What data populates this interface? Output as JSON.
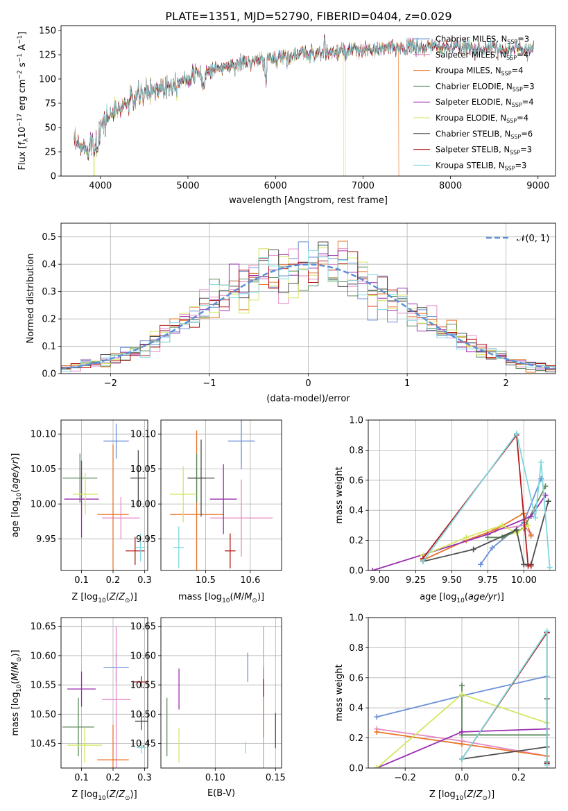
{
  "figure": {
    "title": "PLATE=1351, MJD=52790, FIBERID=0404, z=0.029"
  },
  "colors": {
    "Chabrier MILES": "#6a8fd8",
    "Salpeter MILES": "#e58ac6",
    "Kroupa MILES": "#e8772a",
    "Chabrier ELODIE": "#5c8a5c",
    "Salpeter ELODIE": "#9b2fb0",
    "Kroupa ELODIE": "#d4e660",
    "Chabrier STELIB": "#4d4d4d",
    "Salpeter STELIB": "#b21a1a",
    "Kroupa STELIB": "#7fd8e0",
    "normal_curve": "#5b8fd6",
    "grid": "#b0b0b0"
  },
  "chart_data": [
    {
      "id": "spectrum",
      "type": "line",
      "xlabel": "wavelength [Angstrom, rest frame]",
      "ylabel": "Flux [fλ10⁻¹⁷ erg cm⁻² s⁻¹ A⁻¹]",
      "xlim": [
        3550,
        9200
      ],
      "ylim": [
        0,
        155
      ],
      "xticks": [
        4000,
        5000,
        6000,
        7000,
        8000,
        9000
      ],
      "yticks": [
        0,
        25,
        50,
        75,
        100,
        125,
        150
      ],
      "grid": false,
      "legend_position": "top-right",
      "series": [
        {
          "name": "Chabrier MILES, N",
          "sub": "SSP",
          "suffix": "=3"
        },
        {
          "name": "Salpeter MILES, N",
          "sub": "SSP",
          "suffix": "=4"
        },
        {
          "name": "Kroupa MILES, N",
          "sub": "SSP",
          "suffix": "=4"
        },
        {
          "name": "Chabrier ELODIE, N",
          "sub": "SSP",
          "suffix": "=3"
        },
        {
          "name": "Salpeter ELODIE, N",
          "sub": "SSP",
          "suffix": "=4"
        },
        {
          "name": "Kroupa ELODIE, N",
          "sub": "SSP",
          "suffix": "=4"
        },
        {
          "name": "Chabrier STELIB, N",
          "sub": "SSP",
          "suffix": "=6"
        },
        {
          "name": "Salpeter STELIB, N",
          "sub": "SSP",
          "suffix": "=3"
        },
        {
          "name": "Kroupa STELIB, N",
          "sub": "SSP",
          "suffix": "=3"
        }
      ],
      "continuum_points": [
        [
          3700,
          33
        ],
        [
          3800,
          28
        ],
        [
          3900,
          34
        ],
        [
          4000,
          50
        ],
        [
          4100,
          62
        ],
        [
          4300,
          75
        ],
        [
          4500,
          85
        ],
        [
          4800,
          95
        ],
        [
          5000,
          102
        ],
        [
          5300,
          110
        ],
        [
          5600,
          116
        ],
        [
          5900,
          120
        ],
        [
          6200,
          125
        ],
        [
          6500,
          127
        ],
        [
          6800,
          128
        ],
        [
          7100,
          130
        ],
        [
          7400,
          132
        ],
        [
          7800,
          133
        ],
        [
          8200,
          132
        ],
        [
          8600,
          131
        ],
        [
          8900,
          131
        ]
      ],
      "dropouts": [
        {
          "x": 3920,
          "to": 0,
          "series": "Kroupa ELODIE"
        },
        {
          "x": 6780,
          "to": 0,
          "series": "Kroupa ELODIE"
        },
        {
          "x": 7410,
          "to": 0,
          "series": "Kroupa MILES"
        }
      ]
    },
    {
      "id": "residual_histogram",
      "type": "line",
      "xlabel": "(data-model)/error",
      "ylabel": "Normed distribution",
      "xlim": [
        -2.5,
        2.5
      ],
      "ylim": [
        0,
        0.55
      ],
      "xticks": [
        -2,
        -1,
        0,
        1,
        2
      ],
      "yticks": [
        0.0,
        0.1,
        0.2,
        0.3,
        0.4,
        0.5
      ],
      "grid": true,
      "legend": [
        {
          "label": "N(0,1)",
          "style": "dashed"
        }
      ],
      "legend_position": "top-right",
      "bin_width": 0.1,
      "bin_start": -2.5
    },
    {
      "id": "age_vs_Z",
      "type": "scatter",
      "xlabel": "Z [log10(Z/Z⊙)]",
      "ylabel": "age [log10(age/yr)]",
      "xlim": [
        0.035,
        0.31
      ],
      "ylim": [
        9.905,
        10.12
      ],
      "xticks": [
        0.1,
        0.2,
        0.3
      ],
      "yticks": [
        9.95,
        10.0,
        10.05,
        10.1
      ],
      "grid": true,
      "points": [
        {
          "series": "Chabrier MILES",
          "x": 0.21,
          "y": 10.09,
          "xerr": 0.04,
          "yerr": 0.025
        },
        {
          "series": "Salpeter MILES",
          "x": 0.225,
          "y": 9.98,
          "xerr": 0.06,
          "yerr": 0.03
        },
        {
          "series": "Kroupa MILES",
          "x": 0.2,
          "y": 9.985,
          "xerr": 0.05,
          "yerr": 0.1
        },
        {
          "series": "Chabrier ELODIE",
          "x": 0.095,
          "y": 10.037,
          "xerr": 0.055,
          "yerr": 0.035
        },
        {
          "series": "Salpeter ELODIE",
          "x": 0.1,
          "y": 10.007,
          "xerr": 0.055,
          "yerr": 0.055
        },
        {
          "series": "Kroupa ELODIE",
          "x": 0.112,
          "y": 10.014,
          "xerr": 0.04,
          "yerr": 0.03
        },
        {
          "series": "Chabrier STELIB",
          "x": 0.28,
          "y": 10.037,
          "xerr": 0.025,
          "yerr": 0.04
        },
        {
          "series": "Salpeter STELIB",
          "x": 0.27,
          "y": 9.933,
          "xerr": 0.03,
          "yerr": 0.02
        },
        {
          "series": "Kroupa STELIB",
          "x": 0.287,
          "y": 9.938,
          "xerr": 0.015,
          "yerr": 0.02
        }
      ]
    },
    {
      "id": "age_vs_mass",
      "type": "scatter",
      "xlabel": "mass [log10(M/M⊙)]",
      "ylabel": "",
      "xlim": [
        10.4,
        10.67
      ],
      "ylim": [
        9.905,
        10.12
      ],
      "xticks": [
        10.5,
        10.6
      ],
      "yticks": [
        9.95,
        10.0,
        10.05,
        10.1
      ],
      "grid": true,
      "points": [
        {
          "series": "Chabrier MILES",
          "x": 10.58,
          "y": 10.09,
          "xerr": 0.03,
          "yerr": 0.04
        },
        {
          "series": "Salpeter MILES",
          "x": 10.58,
          "y": 9.98,
          "xerr": 0.07,
          "yerr": 0.055
        },
        {
          "series": "Kroupa MILES",
          "x": 10.48,
          "y": 9.985,
          "xerr": 0.06,
          "yerr": 0.12
        },
        {
          "series": "Chabrier ELODIE",
          "x": 10.48,
          "y": 10.037,
          "xerr": 0.02,
          "yerr": 0.035
        },
        {
          "series": "Salpeter ELODIE",
          "x": 10.54,
          "y": 10.007,
          "xerr": 0.03,
          "yerr": 0.05
        },
        {
          "series": "Kroupa ELODIE",
          "x": 10.45,
          "y": 10.014,
          "xerr": 0.03,
          "yerr": 0.04
        },
        {
          "series": "Chabrier STELIB",
          "x": 10.49,
          "y": 10.037,
          "xerr": 0.03,
          "yerr": 0.055
        },
        {
          "series": "Salpeter STELIB",
          "x": 10.555,
          "y": 9.933,
          "xerr": 0.012,
          "yerr": 0.025
        },
        {
          "series": "Kroupa STELIB",
          "x": 10.44,
          "y": 9.938,
          "xerr": 0.012,
          "yerr": 0.03
        }
      ]
    },
    {
      "id": "mass_weight_vs_age",
      "type": "line",
      "xlabel": "age [log10(age/yr)]",
      "ylabel": "mass weight",
      "xlim": [
        8.92,
        10.22
      ],
      "ylim": [
        0,
        1.0
      ],
      "xticks": [
        9.0,
        9.25,
        9.5,
        9.75,
        10.0
      ],
      "yticks": [
        0.0,
        0.2,
        0.4,
        0.6,
        0.8,
        1.0
      ],
      "grid": true,
      "lines": [
        {
          "series": "Chabrier MILES",
          "points": [
            [
              9.7,
              0.04
            ],
            [
              9.78,
              0.15
            ],
            [
              10.0,
              0.32
            ],
            [
              10.12,
              0.61
            ]
          ]
        },
        {
          "series": "Salpeter MILES",
          "points": [
            [
              9.3,
              0.07
            ],
            [
              9.6,
              0.2
            ],
            [
              9.8,
              0.27
            ],
            [
              10.0,
              0.3
            ],
            [
              10.05,
              0.24
            ]
          ]
        },
        {
          "series": "Kroupa MILES",
          "points": [
            [
              9.3,
              0.07
            ],
            [
              9.6,
              0.2
            ],
            [
              9.8,
              0.27
            ],
            [
              10.0,
              0.38
            ],
            [
              10.05,
              0.23
            ]
          ]
        },
        {
          "series": "Chabrier ELODIE",
          "points": [
            [
              9.75,
              0.22
            ],
            [
              9.85,
              0.22
            ],
            [
              10.0,
              0.28
            ],
            [
              10.15,
              0.56
            ]
          ]
        },
        {
          "series": "Salpeter ELODIE",
          "points": [
            [
              8.95,
              0.0
            ],
            [
              9.75,
              0.24
            ],
            [
              10.05,
              0.36
            ],
            [
              10.15,
              0.5
            ]
          ]
        },
        {
          "series": "Kroupa ELODIE",
          "points": [
            [
              9.3,
              0.1
            ],
            [
              9.6,
              0.22
            ],
            [
              9.85,
              0.3
            ],
            [
              9.95,
              0.25
            ],
            [
              10.03,
              0.3
            ]
          ]
        },
        {
          "series": "Chabrier STELIB",
          "points": [
            [
              9.3,
              0.06
            ],
            [
              9.65,
              0.14
            ],
            [
              9.95,
              0.27
            ],
            [
              10.0,
              0.04
            ],
            [
              10.05,
              0.04
            ],
            [
              10.17,
              0.46
            ]
          ]
        },
        {
          "series": "Salpeter STELIB",
          "points": [
            [
              9.3,
              0.08
            ],
            [
              9.95,
              0.9
            ],
            [
              10.03,
              0.03
            ],
            [
              10.05,
              0.03
            ]
          ]
        },
        {
          "series": "Kroupa STELIB",
          "points": [
            [
              9.3,
              0.06
            ],
            [
              9.95,
              0.91
            ],
            [
              10.08,
              0.35
            ],
            [
              10.12,
              0.72
            ],
            [
              10.18,
              0.02
            ]
          ]
        }
      ]
    },
    {
      "id": "mass_vs_Z",
      "type": "scatter",
      "xlabel": "Z [log10(Z/Z⊙)]",
      "ylabel": "mass [log10(M/M⊙)]",
      "xlim": [
        0.035,
        0.31
      ],
      "ylim": [
        10.408,
        10.665
      ],
      "xticks": [
        0.1,
        0.2,
        0.3
      ],
      "yticks": [
        10.45,
        10.5,
        10.55,
        10.6,
        10.65
      ],
      "grid": true,
      "points": [
        {
          "series": "Chabrier MILES",
          "x": 0.21,
          "y": 10.58,
          "xerr": 0.04,
          "yerr": 0.025
        },
        {
          "series": "Salpeter MILES",
          "x": 0.21,
          "y": 10.525,
          "xerr": 0.045,
          "yerr": 0.125
        },
        {
          "series": "Kroupa MILES",
          "x": 0.2,
          "y": 10.422,
          "xerr": 0.05,
          "yerr": 0.06
        },
        {
          "series": "Chabrier ELODIE",
          "x": 0.09,
          "y": 10.478,
          "xerr": 0.05,
          "yerr": 0.05
        },
        {
          "series": "Salpeter ELODIE",
          "x": 0.1,
          "y": 10.543,
          "xerr": 0.045,
          "yerr": 0.03
        },
        {
          "series": "Kroupa ELODIE",
          "x": 0.11,
          "y": 10.447,
          "xerr": 0.055,
          "yerr": 0.03
        },
        {
          "series": "Chabrier STELIB",
          "x": 0.29,
          "y": 10.488,
          "xerr": 0.02,
          "yerr": 0.015
        },
        {
          "series": "Salpeter STELIB",
          "x": 0.29,
          "y": 10.555,
          "xerr": 0.025,
          "yerr": 0.01
        },
        {
          "series": "Kroupa STELIB",
          "x": 0.29,
          "y": 10.443,
          "xerr": 0.015,
          "yerr": 0.01
        }
      ]
    },
    {
      "id": "mass_vs_ebv",
      "type": "scatter",
      "xlabel": "E(B-V)",
      "ylabel": "",
      "xlim": [
        0.055,
        0.155
      ],
      "ylim": [
        10.408,
        10.665
      ],
      "xticks": [
        0.1,
        0.15
      ],
      "yticks": [
        10.45,
        10.5,
        10.55,
        10.6,
        10.65
      ],
      "grid": true,
      "points": [
        {
          "series": "Chabrier MILES",
          "x": 0.127,
          "y": 10.58,
          "xerr": 0,
          "yerr": 0.025
        },
        {
          "series": "Salpeter MILES",
          "x": 0.14,
          "y": 10.525,
          "xerr": 0,
          "yerr": 0.125
        },
        {
          "series": "Kroupa MILES",
          "x": 0.14,
          "y": 10.52,
          "xerr": 0,
          "yerr": 0.06
        },
        {
          "series": "Chabrier ELODIE",
          "x": 0.06,
          "y": 10.478,
          "xerr": 0,
          "yerr": 0.05
        },
        {
          "series": "Salpeter ELODIE",
          "x": 0.07,
          "y": 10.543,
          "xerr": 0,
          "yerr": 0.035
        },
        {
          "series": "Kroupa ELODIE",
          "x": 0.07,
          "y": 10.447,
          "xerr": 0,
          "yerr": 0.03
        },
        {
          "series": "Chabrier STELIB",
          "x": 0.15,
          "y": 10.472,
          "xerr": 0,
          "yerr": 0.03
        },
        {
          "series": "Salpeter STELIB",
          "x": 0.14,
          "y": 10.545,
          "xerr": 0,
          "yerr": 0.015
        },
        {
          "series": "Kroupa STELIB",
          "x": 0.125,
          "y": 10.443,
          "xerr": 0,
          "yerr": 0.01
        }
      ]
    },
    {
      "id": "mass_weight_vs_Z",
      "type": "line",
      "xlabel": "Z [log10(Z/Z⊙)]",
      "ylabel": "mass weight",
      "xlim": [
        -0.33,
        0.33
      ],
      "ylim": [
        0,
        1.0
      ],
      "xticks": [
        -0.2,
        0.0,
        0.2
      ],
      "yticks": [
        0.0,
        0.2,
        0.4,
        0.6,
        0.8,
        1.0
      ],
      "grid": true,
      "lines": [
        {
          "series": "Chabrier MILES",
          "points": [
            [
              -0.3,
              0.34
            ],
            [
              0.0,
              0.48
            ],
            [
              0.3,
              0.61
            ]
          ]
        },
        {
          "series": "Salpeter MILES",
          "points": [
            [
              -0.3,
              0.26
            ],
            [
              0.0,
              0.18
            ],
            [
              0.3,
              0.08
            ]
          ]
        },
        {
          "series": "Kroupa MILES",
          "points": [
            [
              -0.3,
              0.24
            ],
            [
              0.0,
              0.16
            ],
            [
              0.3,
              0.08
            ]
          ]
        },
        {
          "series": "Chabrier ELODIE",
          "points": [
            [
              0.0,
              0.55
            ],
            [
              0.0,
              0.22
            ],
            [
              0.3,
              0.22
            ]
          ]
        },
        {
          "series": "Salpeter ELODIE",
          "points": [
            [
              -0.3,
              0.0
            ],
            [
              0.0,
              0.24
            ],
            [
              0.3,
              0.26
            ]
          ]
        },
        {
          "series": "Kroupa ELODIE",
          "points": [
            [
              -0.3,
              0.0
            ],
            [
              0.0,
              0.49
            ],
            [
              0.3,
              0.3
            ]
          ]
        },
        {
          "series": "Chabrier STELIB",
          "points": [
            [
              0.0,
              0.06
            ],
            [
              0.3,
              0.14
            ],
            [
              0.3,
              0.46
            ],
            [
              0.3,
              0.04
            ]
          ]
        },
        {
          "series": "Salpeter STELIB",
          "points": [
            [
              0.0,
              0.06
            ],
            [
              0.3,
              0.9
            ],
            [
              0.3,
              0.03
            ]
          ]
        },
        {
          "series": "Kroupa STELIB",
          "points": [
            [
              0.0,
              0.06
            ],
            [
              0.3,
              0.91
            ],
            [
              0.3,
              0.02
            ]
          ]
        }
      ]
    }
  ]
}
